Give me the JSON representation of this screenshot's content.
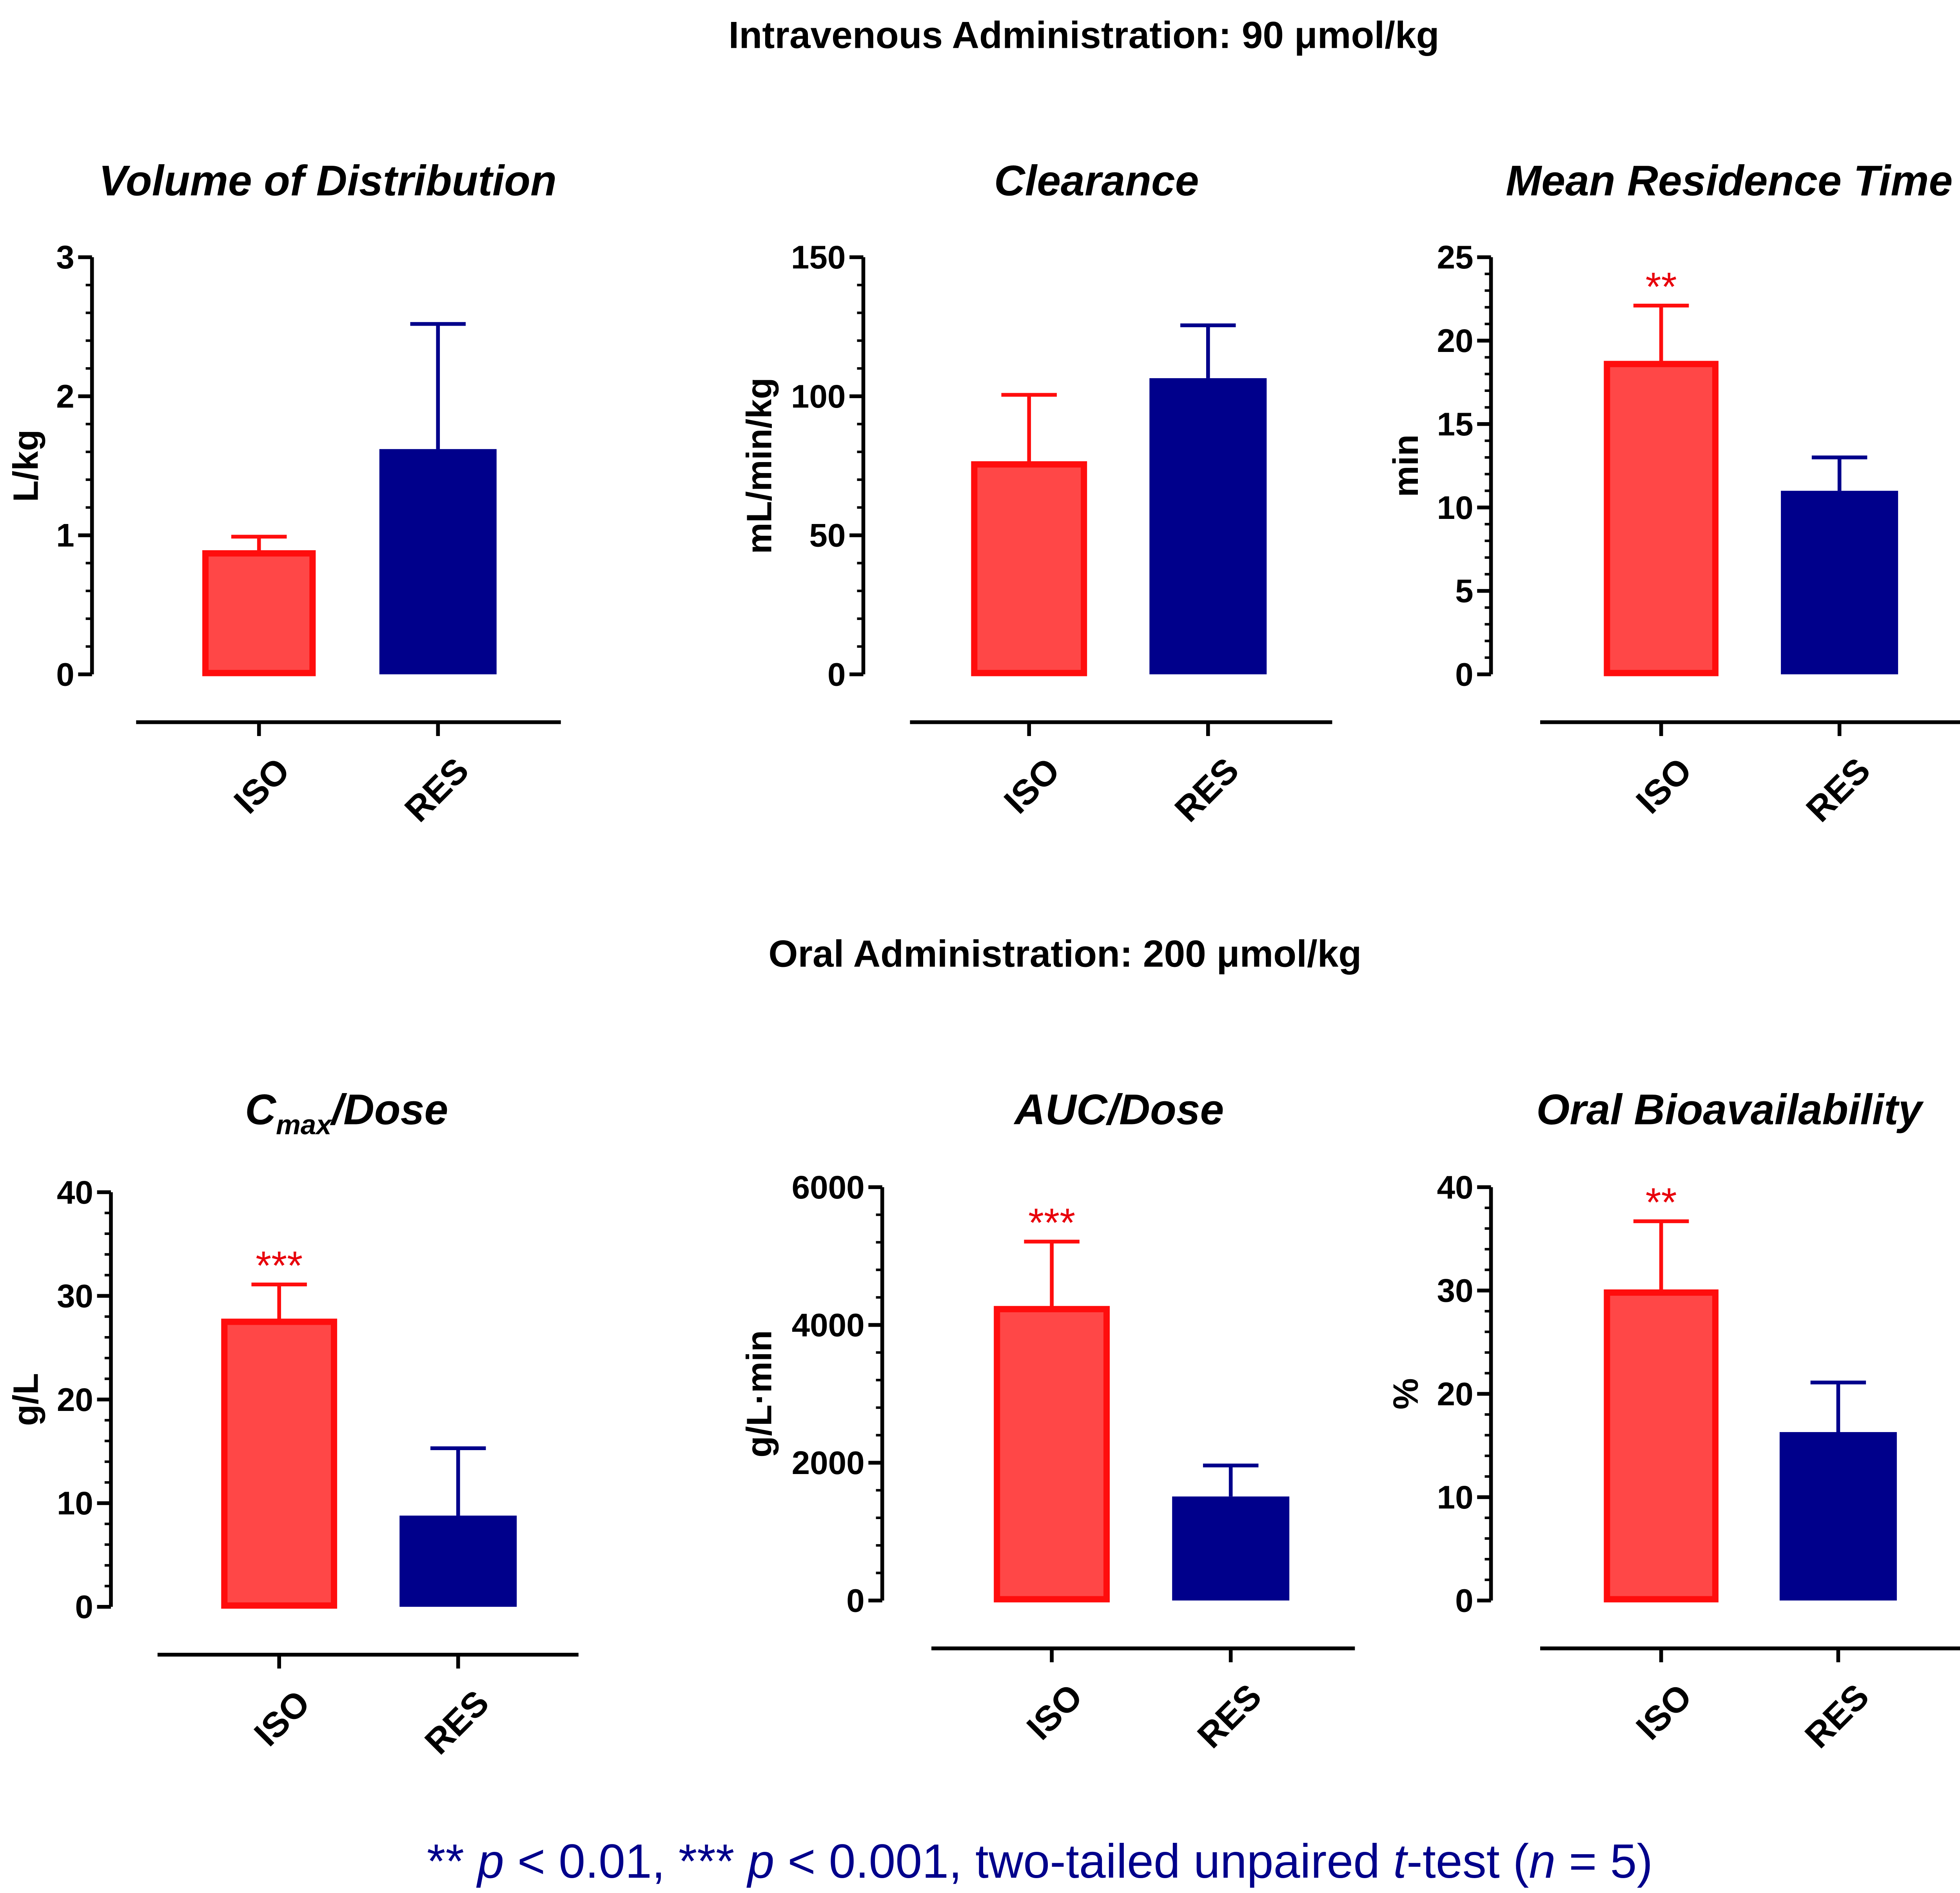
{
  "section_titles": {
    "iv": "Intravenous Administration: 90 μmol/kg",
    "oral": "Oral Administration: 200 μmol/kg"
  },
  "footnote": {
    "sig2": "**",
    "p2": "p",
    "lt2": "< 0.01,",
    "sig3": "***",
    "p3": "p",
    "lt3": "< 0.001, two-tailed unpaired",
    "t": "t",
    "test": "-test (",
    "n": "n",
    "neq": "= 5)"
  },
  "colors": {
    "iso_fill": "#ff4747",
    "iso_stroke": "#ff0d0d",
    "res": "#00008b",
    "star": "#e8000b",
    "footnote": "#00008b",
    "axis": "#000000"
  },
  "chart_data": [
    {
      "type": "bar",
      "title": "Volume of Distribution",
      "ylabel": "L/kg",
      "categories": [
        "ISO",
        "RES"
      ],
      "values": [
        0.87,
        1.62
      ],
      "errors": [
        0.12,
        0.9
      ],
      "sig": [
        "",
        ""
      ],
      "ylim": [
        0,
        3
      ],
      "yticks": [
        0,
        1,
        2,
        3
      ],
      "yticklabels": [
        "0",
        "1",
        "2",
        "3"
      ]
    },
    {
      "type": "bar",
      "title": "Clearance",
      "ylabel": "mL/min/kg",
      "categories": [
        "ISO",
        "RES"
      ],
      "values": [
        75.5,
        106.5
      ],
      "errors": [
        25,
        19
      ],
      "sig": [
        "",
        ""
      ],
      "ylim": [
        0,
        150
      ],
      "yticks": [
        0,
        50,
        100,
        150
      ],
      "yticklabels": [
        "0",
        "50",
        "100",
        "150"
      ]
    },
    {
      "type": "bar",
      "title": "Mean Residence Time",
      "ylabel": "min",
      "categories": [
        "ISO",
        "RES"
      ],
      "values": [
        18.6,
        11
      ],
      "errors": [
        3.5,
        2
      ],
      "sig": [
        "**",
        ""
      ],
      "ylim": [
        0,
        25
      ],
      "yticks": [
        0,
        5,
        10,
        15,
        20,
        25
      ],
      "yticklabels": [
        "0",
        "5",
        "10",
        "15",
        "20",
        "25"
      ]
    },
    {
      "type": "bar",
      "title": "C",
      "title_sub": "max",
      "title_rest": "/Dose",
      "ylabel": "g/L",
      "categories": [
        "ISO",
        "RES"
      ],
      "values": [
        27.5,
        8.8
      ],
      "errors": [
        3.6,
        6.5
      ],
      "sig": [
        "***",
        ""
      ],
      "ylim": [
        0,
        40
      ],
      "yticks": [
        0,
        10,
        20,
        30,
        40
      ],
      "yticklabels": [
        "0",
        "10",
        "20",
        "30",
        "40"
      ]
    },
    {
      "type": "bar",
      "title": "AUC/Dose",
      "ylabel": "g/L·min",
      "categories": [
        "ISO",
        "RES"
      ],
      "values": [
        4230,
        1510
      ],
      "errors": [
        980,
        450
      ],
      "sig": [
        "***",
        ""
      ],
      "ylim": [
        0,
        6000
      ],
      "yticks": [
        0,
        2000,
        4000,
        6000
      ],
      "yticklabels": [
        "0",
        "2000",
        "4000",
        "6000"
      ]
    },
    {
      "type": "bar",
      "title": "Oral Bioavailability",
      "ylabel": "%",
      "categories": [
        "ISO",
        "RES"
      ],
      "values": [
        29.8,
        16.3
      ],
      "errors": [
        6.9,
        4.8
      ],
      "sig": [
        "**",
        ""
      ],
      "ylim": [
        0,
        40
      ],
      "yticks": [
        0,
        10,
        20,
        30,
        40
      ],
      "yticklabels": [
        "0",
        "10",
        "20",
        "30",
        "40"
      ]
    }
  ]
}
